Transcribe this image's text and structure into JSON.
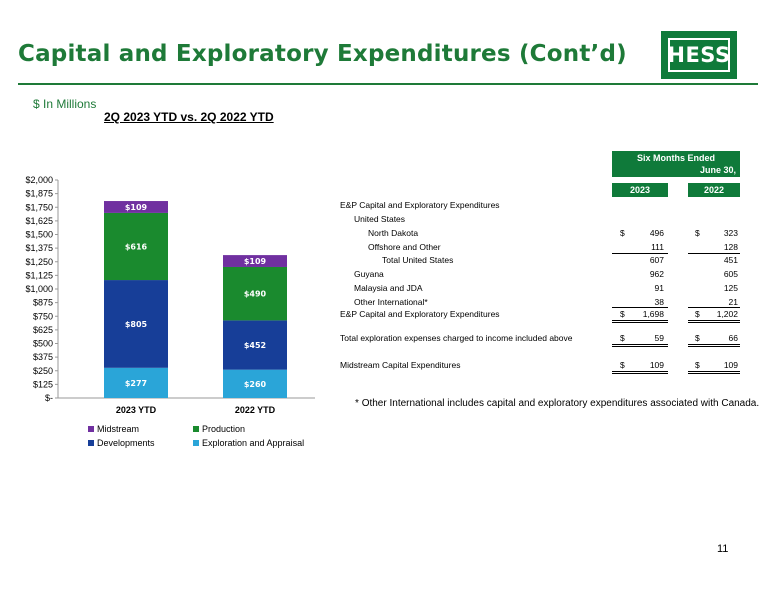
{
  "title": "Capital and Exploratory Expenditures (Cont’d)",
  "logo_text": "HESS",
  "units": "$ In Millions",
  "subtitle": "2Q 2023 YTD vs. 2Q 2022 YTD",
  "page_number": "11",
  "footnote_star": "*",
  "footnote": "Other International includes capital and exploratory expenditures associated with Canada.",
  "colors": {
    "brand_green": "#1e7a38",
    "midstream": "#7030a0",
    "production": "#1a8a2e",
    "developments": "#173e98",
    "exploration": "#2aa5d8"
  },
  "chart_data": {
    "type": "bar",
    "stacked": true,
    "categories": [
      "2023 YTD",
      "2022 YTD"
    ],
    "series": [
      {
        "name": "Exploration and Appraisal",
        "values": [
          277,
          260
        ],
        "labels": [
          "$277",
          "$260"
        ]
      },
      {
        "name": "Developments",
        "values": [
          805,
          452
        ],
        "labels": [
          "$805",
          "$452"
        ]
      },
      {
        "name": "Production",
        "values": [
          616,
          490
        ],
        "labels": [
          "$616",
          "$490"
        ]
      },
      {
        "name": "Midstream",
        "values": [
          109,
          109
        ],
        "labels": [
          "$109",
          "$109"
        ]
      }
    ],
    "ylim": [
      0,
      2000
    ],
    "yticks": [
      0,
      125,
      250,
      375,
      500,
      625,
      750,
      875,
      1000,
      1125,
      1250,
      1375,
      1500,
      1625,
      1750,
      1875,
      2000
    ],
    "ytick_labels": [
      "$-",
      "$125",
      "$250",
      "$375",
      "$500",
      "$625",
      "$750",
      "$875",
      "$1,000",
      "$1,125",
      "$1,250",
      "$1,375",
      "$1,500",
      "$1,625",
      "$1,750",
      "$1,875",
      "$2,000"
    ],
    "legend": [
      "Midstream",
      "Production",
      "Developments",
      "Exploration and Appraisal"
    ],
    "legend_position": "bottom"
  },
  "table": {
    "period_header_1": "Six Months Ended",
    "period_header_2": "June 30,",
    "col_2023": "2023",
    "col_2022": "2022",
    "rows": [
      {
        "label": "E&P Capital and Exploratory Expenditures",
        "v2023": "",
        "v2022": "",
        "dollar": false
      },
      {
        "label": "United States",
        "v2023": "",
        "v2022": "",
        "dollar": false
      },
      {
        "label": "North Dakota",
        "v2023": "496",
        "v2022": "323",
        "dollar": true
      },
      {
        "label": "Offshore and Other",
        "v2023": "111",
        "v2022": "128",
        "dollar": false
      },
      {
        "label": "Total United States",
        "v2023": "607",
        "v2022": "451",
        "dollar": false
      },
      {
        "label": "Guyana",
        "v2023": "962",
        "v2022": "605",
        "dollar": false
      },
      {
        "label": "Malaysia and JDA",
        "v2023": "91",
        "v2022": "125",
        "dollar": false
      },
      {
        "label": "Other International*",
        "v2023": "38",
        "v2022": "21",
        "dollar": false
      },
      {
        "label": "E&P Capital and Exploratory Expenditures",
        "v2023": "1,698",
        "v2022": "1,202",
        "dollar": true
      },
      {
        "label": "Total exploration expenses charged to income included above",
        "v2023": "59",
        "v2022": "66",
        "dollar": true
      },
      {
        "label": "Midstream Capital Expenditures",
        "v2023": "109",
        "v2022": "109",
        "dollar": true
      }
    ],
    "dollar_sign": "$"
  }
}
